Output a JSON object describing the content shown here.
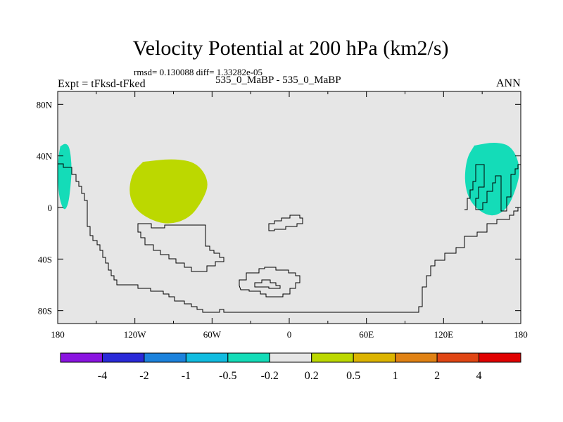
{
  "title": "Velocity Potential at 200 hPa (km2/s)",
  "stats_text": "rmsd= 0.130088 diff= 1.33282e-05",
  "left_label": "Expt = tFksd-tFked",
  "center_label": "535_0_MaBP - 535_0_MaBP",
  "right_label": "ANN",
  "chart_data": {
    "type": "contour-map",
    "lon_ticks": [
      "180",
      "120W",
      "60W",
      "0",
      "60E",
      "120E",
      "180"
    ],
    "lat_ticks": [
      "80N",
      "40N",
      "0",
      "40S",
      "80S"
    ],
    "lon_range": [
      -180,
      180
    ],
    "lat_range": [
      -90,
      90
    ],
    "background_value_range": [
      -0.2,
      0.2
    ],
    "regions": [
      {
        "level_range": [
          0.2,
          0.5
        ],
        "color": "#bcd800",
        "lon_range": [
          -125,
          -62
        ],
        "lat_range": [
          -14,
          38
        ]
      },
      {
        "level_range": [
          -0.5,
          -0.2
        ],
        "color": "#14dcb8",
        "lon_range": [
          -180,
          -169
        ],
        "lat_range": [
          -3,
          50
        ]
      },
      {
        "level_range": [
          -0.5,
          -0.2
        ],
        "color": "#14dcb8",
        "lon_range": [
          136,
          180
        ],
        "lat_range": [
          -8,
          51
        ]
      }
    ]
  },
  "colorbar": {
    "labels": [
      "-4",
      "-2",
      "-1",
      "-0.5",
      "-0.2",
      "0.2",
      "0.5",
      "1",
      "2",
      "4"
    ],
    "colors": [
      "#8a14e0",
      "#2a2ad8",
      "#1c82dc",
      "#12bce0",
      "#14dcb8",
      "#e6e6e6",
      "#bcd800",
      "#dcb400",
      "#e08214",
      "#e04614",
      "#e00000"
    ]
  }
}
